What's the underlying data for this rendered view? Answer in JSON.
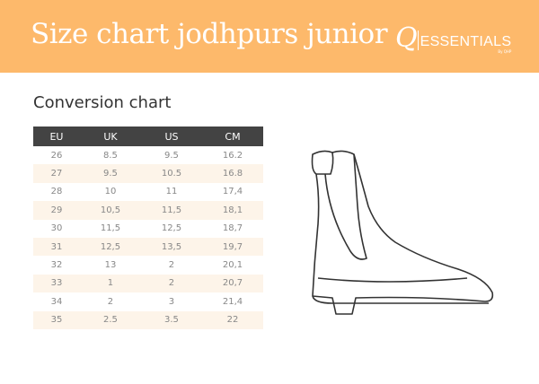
{
  "header": {
    "title": "Size chart jodhpurs junior",
    "logo": {
      "mark": "Q",
      "text": "ESSENTIALS",
      "by": "By QHP"
    }
  },
  "section_title": "Conversion chart",
  "table": {
    "columns": [
      "EU",
      "UK",
      "US",
      "CM"
    ],
    "rows": [
      [
        "26",
        "8.5",
        "9.5",
        "16.2"
      ],
      [
        "27",
        "9.5",
        "10.5",
        "16.8"
      ],
      [
        "28",
        "10",
        "11",
        "17,4"
      ],
      [
        "29",
        "10,5",
        "11,5",
        "18,1"
      ],
      [
        "30",
        "11,5",
        "12,5",
        "18,7"
      ],
      [
        "31",
        "12,5",
        "13,5",
        "19,7"
      ],
      [
        "32",
        "13",
        "2",
        "20,1"
      ],
      [
        "33",
        "1",
        "2",
        "20,7"
      ],
      [
        "34",
        "2",
        "3",
        "21,4"
      ],
      [
        "35",
        "2.5",
        "3.5",
        "22"
      ]
    ]
  },
  "colors": {
    "banner": "#fdb96b",
    "table_header": "#434343",
    "row_alt": "#fdf4e9"
  },
  "illustration": "boot-icon"
}
